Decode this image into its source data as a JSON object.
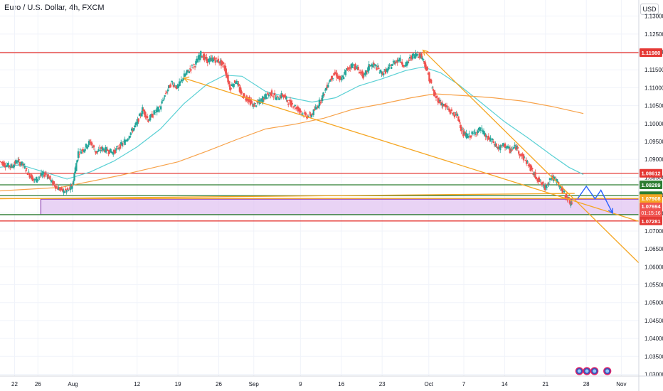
{
  "header": {
    "title": "Euro / U.S. Dollar, 4h, FXCM",
    "currency": "USD"
  },
  "colors": {
    "candle_up": "#26a69a",
    "candle_down": "#ef5350",
    "ma_fast": "#5ad0d4",
    "ma_slow": "#f7a24a",
    "trendline": "#f5a623",
    "level_red": "#e53935",
    "level_green": "#2e7d32",
    "zone_fill": "#e1c4f2",
    "zone_border": "#7b1fa2",
    "projection": "#2962ff"
  },
  "chart_data": {
    "type": "candlestick",
    "symbol": "EURUSD",
    "timeframe": "4h",
    "ylim": [
      1.0295,
      1.1345
    ],
    "y_ticks": [
      "1.13000",
      "1.12500",
      "1.12000",
      "1.11500",
      "1.11000",
      "1.10500",
      "1.10000",
      "1.09500",
      "1.09000",
      "1.08500",
      "1.08000",
      "1.07500",
      "1.07000",
      "1.06500",
      "1.06000",
      "1.05500",
      "1.05000",
      "1.04500",
      "1.04000",
      "1.03500",
      "1.03000"
    ],
    "x_ticks": [
      "22",
      "26",
      "Aug",
      "12",
      "19",
      "26",
      "Sep",
      "9",
      "16",
      "23",
      "Oct",
      "7",
      "14",
      "21",
      "28",
      "Nov"
    ],
    "x_tick_days": [
      22,
      26,
      32,
      43,
      50,
      57,
      63,
      71,
      78,
      85,
      93,
      99,
      106,
      113,
      120,
      126
    ],
    "x_range_days": [
      19.5,
      129
    ],
    "price_series": [
      [
        19.5,
        1.0895
      ],
      [
        20.5,
        1.0885
      ],
      [
        21.5,
        1.088
      ],
      [
        22.5,
        1.0895
      ],
      [
        23.5,
        1.0885
      ],
      [
        24.5,
        1.086
      ],
      [
        25.5,
        1.084
      ],
      [
        26.5,
        1.0855
      ],
      [
        27.5,
        1.086
      ],
      [
        28.5,
        1.0835
      ],
      [
        29.5,
        1.082
      ],
      [
        30.5,
        1.081
      ],
      [
        31.5,
        1.0815
      ],
      [
        32.0,
        1.083
      ],
      [
        33.0,
        1.092
      ],
      [
        34.0,
        1.093
      ],
      [
        35.0,
        1.095
      ],
      [
        36.0,
        1.092
      ],
      [
        37.0,
        1.093
      ],
      [
        38.0,
        1.0925
      ],
      [
        39.0,
        1.092
      ],
      [
        40.0,
        1.0935
      ],
      [
        41.0,
        1.095
      ],
      [
        42.0,
        1.0975
      ],
      [
        43.0,
        1.1
      ],
      [
        44.0,
        1.104
      ],
      [
        45.0,
        1.101
      ],
      [
        46.0,
        1.103
      ],
      [
        47.0,
        1.1045
      ],
      [
        48.0,
        1.1085
      ],
      [
        49.0,
        1.1115
      ],
      [
        50.0,
        1.11
      ],
      [
        51.0,
        1.113
      ],
      [
        52.0,
        1.115
      ],
      [
        53.0,
        1.1165
      ],
      [
        54.0,
        1.1195
      ],
      [
        55.0,
        1.1175
      ],
      [
        56.0,
        1.118
      ],
      [
        57.0,
        1.1175
      ],
      [
        58.0,
        1.116
      ],
      [
        59.0,
        1.11
      ],
      [
        60.0,
        1.112
      ],
      [
        61.0,
        1.108
      ],
      [
        62.0,
        1.107
      ],
      [
        63.0,
        1.105
      ],
      [
        64.0,
        1.106
      ],
      [
        65.0,
        1.1075
      ],
      [
        66.0,
        1.1085
      ],
      [
        67.0,
        1.107
      ],
      [
        68.0,
        1.108
      ],
      [
        69.0,
        1.106
      ],
      [
        70.0,
        1.105
      ],
      [
        71.0,
        1.1035
      ],
      [
        72.0,
        1.102
      ],
      [
        73.0,
        1.1025
      ],
      [
        74.0,
        1.105
      ],
      [
        75.0,
        1.108
      ],
      [
        76.0,
        1.112
      ],
      [
        77.0,
        1.114
      ],
      [
        78.0,
        1.112
      ],
      [
        79.0,
        1.115
      ],
      [
        80.0,
        1.1165
      ],
      [
        81.0,
        1.115
      ],
      [
        82.0,
        1.113
      ],
      [
        83.0,
        1.1165
      ],
      [
        84.0,
        1.116
      ],
      [
        85.0,
        1.114
      ],
      [
        86.0,
        1.115
      ],
      [
        87.0,
        1.117
      ],
      [
        88.0,
        1.118
      ],
      [
        89.0,
        1.116
      ],
      [
        90.0,
        1.1185
      ],
      [
        91.0,
        1.1195
      ],
      [
        92.0,
        1.1185
      ],
      [
        93.0,
        1.1135
      ],
      [
        94.0,
        1.108
      ],
      [
        95.0,
        1.106
      ],
      [
        96.0,
        1.1045
      ],
      [
        97.0,
        1.103
      ],
      [
        98.0,
        1.102
      ],
      [
        99.0,
        1.097
      ],
      [
        100.0,
        1.0965
      ],
      [
        101.0,
        1.0975
      ],
      [
        102.0,
        1.0985
      ],
      [
        103.0,
        1.096
      ],
      [
        104.0,
        1.095
      ],
      [
        105.0,
        1.093
      ],
      [
        106.0,
        1.094
      ],
      [
        107.0,
        1.0925
      ],
      [
        108.0,
        1.0935
      ],
      [
        109.0,
        1.091
      ],
      [
        110.0,
        1.089
      ],
      [
        111.0,
        1.086
      ],
      [
        112.0,
        1.084
      ],
      [
        113.0,
        1.082
      ],
      [
        114.0,
        1.085
      ],
      [
        115.0,
        1.084
      ],
      [
        116.0,
        1.081
      ],
      [
        117.0,
        1.079
      ],
      [
        117.6,
        1.0769
      ]
    ],
    "sma_fast": [
      [
        19.5,
        1.0878
      ],
      [
        23,
        1.0885
      ],
      [
        27,
        1.0865
      ],
      [
        31,
        1.0845
      ],
      [
        35,
        1.0865
      ],
      [
        39,
        1.0895
      ],
      [
        43,
        1.0935
      ],
      [
        47,
        1.0985
      ],
      [
        51,
        1.1055
      ],
      [
        55,
        1.111
      ],
      [
        58,
        1.1135
      ],
      [
        61,
        1.1132
      ],
      [
        65,
        1.109
      ],
      [
        69,
        1.1073
      ],
      [
        73,
        1.106
      ],
      [
        77,
        1.1072
      ],
      [
        81,
        1.1105
      ],
      [
        85,
        1.1125
      ],
      [
        89,
        1.1148
      ],
      [
        92,
        1.1158
      ],
      [
        95,
        1.1142
      ],
      [
        98,
        1.111
      ],
      [
        102,
        1.1058
      ],
      [
        106,
        1.1005
      ],
      [
        110,
        1.096
      ],
      [
        114,
        1.0912
      ],
      [
        117,
        1.0878
      ],
      [
        119.5,
        1.0858
      ]
    ],
    "sma_slow": [
      [
        19.5,
        1.0812
      ],
      [
        30,
        1.0822
      ],
      [
        40,
        1.0855
      ],
      [
        50,
        1.0893
      ],
      [
        55,
        1.0923
      ],
      [
        60,
        1.0955
      ],
      [
        65,
        1.0985
      ],
      [
        70,
        1.0998
      ],
      [
        75,
        1.1015
      ],
      [
        80,
        1.104
      ],
      [
        85,
        1.1055
      ],
      [
        90,
        1.1072
      ],
      [
        94,
        1.1083
      ],
      [
        99,
        1.1078
      ],
      [
        104,
        1.1072
      ],
      [
        109,
        1.1063
      ],
      [
        114,
        1.1048
      ],
      [
        119.5,
        1.1028
      ]
    ],
    "horizontal_levels": [
      {
        "price": 1.1198,
        "label": "1.11980",
        "color": "red"
      },
      {
        "price": 1.08612,
        "label": "1.08612",
        "color": "red"
      },
      {
        "price": 1.08289,
        "label": "1.08289",
        "color": "green"
      },
      {
        "price": 1.07986,
        "label": "1.07986",
        "color": "green"
      },
      {
        "price": 1.07908,
        "label": "1.07908",
        "color": "orange"
      },
      {
        "price": 1.07457,
        "label": "1.07457",
        "color": "green"
      },
      {
        "price": 1.07281,
        "label": "1.07281",
        "color": "red"
      }
    ],
    "current_price": {
      "price": 1.07694,
      "label": "1.07694",
      "countdown": "01:15:16"
    },
    "zone": {
      "from_day": 26.5,
      "to_day": 129,
      "top": 1.0789,
      "bottom": 1.07457
    },
    "trendlines": [
      {
        "from": [
          51.0,
          1.1127
        ],
        "to": [
          129.0,
          1.0727
        ],
        "arrow_start": true
      },
      {
        "from": [
          92.0,
          1.1205
        ],
        "to": [
          129.0,
          1.0611
        ],
        "arrow_start": true
      },
      {
        "from": [
          19.5,
          1.079
        ],
        "to": [
          118.0,
          1.0805
        ],
        "arrow_start": false
      }
    ],
    "projection": [
      [
        118.5,
        1.079
      ],
      [
        120.0,
        1.0825
      ],
      [
        121.5,
        1.079
      ],
      [
        122.5,
        1.0814
      ],
      [
        124.5,
        1.075
      ]
    ],
    "event_markers_days": [
      118.8,
      120.1,
      121.4,
      123.6
    ]
  }
}
